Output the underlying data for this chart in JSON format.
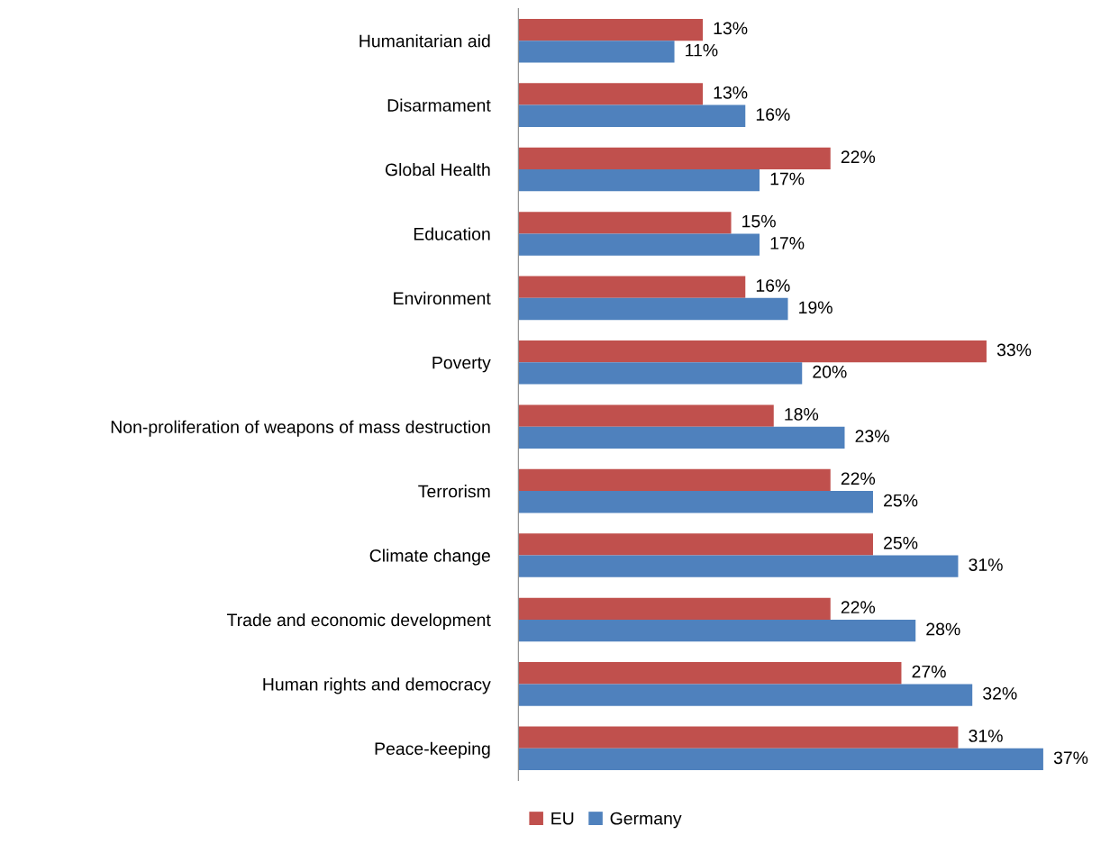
{
  "chart_data": {
    "type": "bar",
    "orientation": "horizontal",
    "categories": [
      "Humanitarian aid",
      "Disarmament",
      "Global Health",
      "Education",
      "Environment",
      "Poverty",
      "Non-proliferation of weapons of mass destruction",
      "Terrorism",
      "Climate change",
      "Trade and economic development",
      "Human rights and democracy",
      "Peace-keeping"
    ],
    "series": [
      {
        "name": "EU",
        "color": "#c0504d",
        "values": [
          13,
          13,
          22,
          15,
          16,
          33,
          18,
          22,
          25,
          22,
          27,
          31
        ],
        "value_labels": [
          "13%",
          "13%",
          "22%",
          "15%",
          "16%",
          "33%",
          "18%",
          "22%",
          "25%",
          "22%",
          "27%",
          "31%"
        ]
      },
      {
        "name": "Germany",
        "color": "#4f81bd",
        "values": [
          11,
          16,
          17,
          17,
          19,
          20,
          23,
          25,
          31,
          28,
          32,
          37
        ],
        "value_labels": [
          "11%",
          "16%",
          "17%",
          "17%",
          "19%",
          "20%",
          "23%",
          "25%",
          "31%",
          "28%",
          "32%",
          "37%"
        ]
      }
    ],
    "legend": "bottom",
    "grid": false,
    "tick_labels": "y"
  }
}
